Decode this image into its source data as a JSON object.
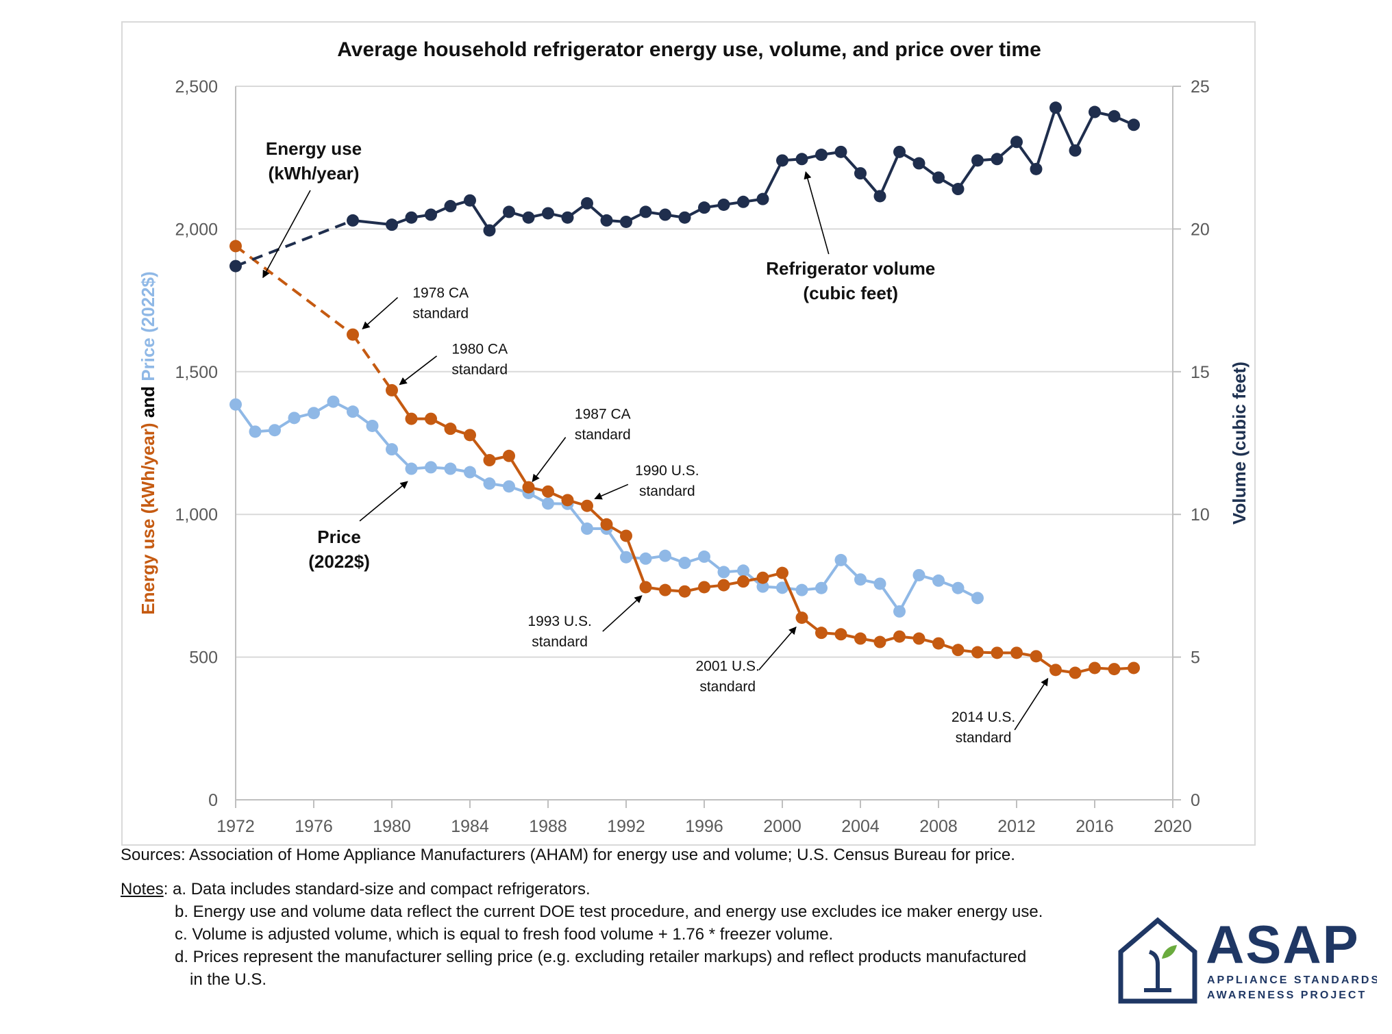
{
  "chart_data": {
    "type": "line",
    "title": "Average household refrigerator energy use, volume, and price over time",
    "x_axis": {
      "min": 1972,
      "max": 2020,
      "ticks": [
        1972,
        1976,
        1980,
        1984,
        1988,
        1992,
        1996,
        2000,
        2004,
        2008,
        2012,
        2016,
        2020
      ]
    },
    "y_left": {
      "min": 0,
      "max": 2500,
      "ticks": [
        0,
        500,
        1000,
        1500,
        2000,
        2500
      ],
      "tick_labels": [
        "0",
        "500",
        "1,000",
        "1,500",
        "2,000",
        "2,500"
      ],
      "label_parts": [
        {
          "text": "Energy use (kWh/year)",
          "color": "#c55a11"
        },
        {
          "text": " and ",
          "color": "#000000"
        },
        {
          "text": "Price (2022$)",
          "color": "#8fb8e6"
        }
      ]
    },
    "y_right": {
      "min": 0,
      "max": 25,
      "ticks": [
        0,
        5,
        10,
        15,
        20,
        25
      ],
      "tick_labels": [
        "0",
        "5",
        "10",
        "15",
        "20",
        "25"
      ],
      "label": "Volume (cubic feet)",
      "color": "#1f3251"
    },
    "gridlines": "horizontal",
    "colors": {
      "energy": "#c55a11",
      "price": "#8fb8e6",
      "volume": "#1f2e4d"
    },
    "series": [
      {
        "name": "Energy use (kWh/year)",
        "axis": "left",
        "key": "energy",
        "points": [
          [
            1972,
            1940
          ],
          [
            1978,
            1630
          ],
          [
            1980,
            1435
          ],
          [
            1981,
            1335
          ],
          [
            1982,
            1335
          ],
          [
            1983,
            1300
          ],
          [
            1984,
            1278
          ],
          [
            1985,
            1190
          ],
          [
            1986,
            1205
          ],
          [
            1987,
            1095
          ],
          [
            1988,
            1080
          ],
          [
            1989,
            1050
          ],
          [
            1990,
            1030
          ],
          [
            1991,
            965
          ],
          [
            1992,
            925
          ],
          [
            1993,
            745
          ],
          [
            1994,
            735
          ],
          [
            1995,
            730
          ],
          [
            1996,
            745
          ],
          [
            1997,
            752
          ],
          [
            1998,
            765
          ],
          [
            1999,
            778
          ],
          [
            2000,
            795
          ],
          [
            2001,
            638
          ],
          [
            2002,
            585
          ],
          [
            2003,
            580
          ],
          [
            2004,
            565
          ],
          [
            2005,
            553
          ],
          [
            2006,
            572
          ],
          [
            2007,
            565
          ],
          [
            2008,
            548
          ],
          [
            2009,
            525
          ],
          [
            2010,
            517
          ],
          [
            2011,
            515
          ],
          [
            2012,
            515
          ],
          [
            2013,
            503
          ],
          [
            2014,
            455
          ],
          [
            2015,
            445
          ],
          [
            2016,
            462
          ],
          [
            2017,
            458
          ],
          [
            2018,
            462
          ]
        ],
        "dashed_until": 1980
      },
      {
        "name": "Price (2022$)",
        "axis": "left",
        "key": "price",
        "points": [
          [
            1972,
            1385
          ],
          [
            1973,
            1290
          ],
          [
            1974,
            1295
          ],
          [
            1975,
            1338
          ],
          [
            1976,
            1355
          ],
          [
            1977,
            1395
          ],
          [
            1978,
            1360
          ],
          [
            1979,
            1310
          ],
          [
            1980,
            1228
          ],
          [
            1981,
            1160
          ],
          [
            1982,
            1165
          ],
          [
            1983,
            1160
          ],
          [
            1984,
            1148
          ],
          [
            1985,
            1108
          ],
          [
            1986,
            1098
          ],
          [
            1987,
            1075
          ],
          [
            1988,
            1038
          ],
          [
            1989,
            1037
          ],
          [
            1990,
            950
          ],
          [
            1991,
            950
          ],
          [
            1992,
            850
          ],
          [
            1993,
            845
          ],
          [
            1994,
            855
          ],
          [
            1995,
            830
          ],
          [
            1996,
            852
          ],
          [
            1997,
            798
          ],
          [
            1998,
            803
          ],
          [
            1999,
            747
          ],
          [
            2000,
            743
          ],
          [
            2001,
            735
          ],
          [
            2002,
            742
          ],
          [
            2003,
            840
          ],
          [
            2004,
            772
          ],
          [
            2005,
            757
          ],
          [
            2006,
            660
          ],
          [
            2007,
            787
          ],
          [
            2008,
            768
          ],
          [
            2009,
            742
          ],
          [
            2010,
            707
          ]
        ]
      },
      {
        "name": "Refrigerator volume (cubic feet)",
        "axis": "right",
        "key": "volume",
        "points": [
          [
            1972,
            18.7
          ],
          [
            1978,
            20.3
          ],
          [
            1980,
            20.15
          ],
          [
            1981,
            20.4
          ],
          [
            1982,
            20.5
          ],
          [
            1983,
            20.8
          ],
          [
            1984,
            21.0
          ],
          [
            1985,
            19.95
          ],
          [
            1986,
            20.6
          ],
          [
            1987,
            20.4
          ],
          [
            1988,
            20.55
          ],
          [
            1989,
            20.4
          ],
          [
            1990,
            20.9
          ],
          [
            1991,
            20.3
          ],
          [
            1992,
            20.25
          ],
          [
            1993,
            20.6
          ],
          [
            1994,
            20.5
          ],
          [
            1995,
            20.4
          ],
          [
            1996,
            20.75
          ],
          [
            1997,
            20.85
          ],
          [
            1998,
            20.95
          ],
          [
            1999,
            21.05
          ],
          [
            2000,
            22.4
          ],
          [
            2001,
            22.45
          ],
          [
            2002,
            22.6
          ],
          [
            2003,
            22.7
          ],
          [
            2004,
            21.95
          ],
          [
            2005,
            21.15
          ],
          [
            2006,
            22.7
          ],
          [
            2007,
            22.3
          ],
          [
            2008,
            21.8
          ],
          [
            2009,
            21.4
          ],
          [
            2010,
            22.4
          ],
          [
            2011,
            22.45
          ],
          [
            2012,
            23.05
          ],
          [
            2013,
            22.1
          ],
          [
            2014,
            24.25
          ],
          [
            2015,
            22.75
          ],
          [
            2016,
            24.1
          ],
          [
            2017,
            23.95
          ],
          [
            2018,
            23.65
          ]
        ],
        "dashed_until": 1978
      }
    ],
    "series_labels": [
      {
        "key": "energy_label",
        "lines": [
          "Energy use",
          "(kWh/year)"
        ],
        "at": [
          1976,
          2260
        ],
        "bold": true,
        "arrow_to": [
          1973.4,
          1830
        ]
      },
      {
        "key": "price_label",
        "lines": [
          "Price",
          "(2022$)"
        ],
        "at": [
          1977.3,
          900
        ],
        "bold": true,
        "arrow_to": [
          1980.8,
          1115
        ]
      },
      {
        "key": "volume_label",
        "lines": [
          "Refrigerator volume",
          "(cubic feet)"
        ],
        "at": [
          2003.5,
          1840
        ],
        "bold": true,
        "arrow_to": [
          2001.2,
          2200
        ]
      }
    ],
    "annotations": [
      {
        "lines": [
          "1978 CA",
          "standard"
        ],
        "text_at": [
          1982.5,
          1760
        ],
        "arrow_from": [
          1980.3,
          1760
        ],
        "arrow_to": [
          1978.5,
          1650
        ]
      },
      {
        "lines": [
          "1980 CA",
          "standard"
        ],
        "text_at": [
          1984.5,
          1563
        ],
        "arrow_from": [
          1982.3,
          1555
        ],
        "arrow_to": [
          1980.4,
          1455
        ]
      },
      {
        "lines": [
          "1987 CA",
          "standard"
        ],
        "text_at": [
          1990.8,
          1335
        ],
        "arrow_from": [
          1988.9,
          1270
        ],
        "arrow_to": [
          1987.2,
          1115
        ]
      },
      {
        "lines": [
          "1990 U.S.",
          "standard"
        ],
        "text_at": [
          1994.1,
          1137
        ],
        "arrow_from": [
          1992.1,
          1105
        ],
        "arrow_to": [
          1990.4,
          1055
        ]
      },
      {
        "lines": [
          "1993 U.S.",
          "standard"
        ],
        "text_at": [
          1988.6,
          610
        ],
        "arrow_from": [
          1990.8,
          590
        ],
        "arrow_to": [
          1992.8,
          715
        ]
      },
      {
        "lines": [
          "2001 U.S.",
          "standard"
        ],
        "text_at": [
          1997.2,
          452
        ],
        "arrow_from": [
          1998.8,
          455
        ],
        "arrow_to": [
          2000.7,
          605
        ]
      },
      {
        "lines": [
          "2014 U.S.",
          "standard"
        ],
        "text_at": [
          2010.3,
          273
        ],
        "arrow_from": [
          2011.9,
          245
        ],
        "arrow_to": [
          2013.6,
          425
        ]
      }
    ]
  },
  "footer": {
    "sources": "Sources: Association of Home Appliance Manufacturers (AHAM) for energy use and volume; U.S. Census Bureau for price.",
    "notes_label": "Notes",
    "notes_a": ": a. Data includes standard-size and compact refrigerators.",
    "notes_b": "b. Energy use and volume data reflect the current DOE test procedure, and energy use excludes ice maker energy use.",
    "notes_c": "c. Volume is adjusted volume, which is equal to fresh food volume + 1.76 * freezer volume.",
    "notes_d1": "d. Prices represent the manufacturer selling price (e.g. excluding retailer markups) and reflect products manufactured",
    "notes_d2": "in the U.S."
  },
  "logo": {
    "name": "ASAP",
    "line1": "APPLIANCE STANDARDS",
    "line2": "AWARENESS PROJECT",
    "color": "#1f3764",
    "leaf_color": "#6aab3e"
  }
}
